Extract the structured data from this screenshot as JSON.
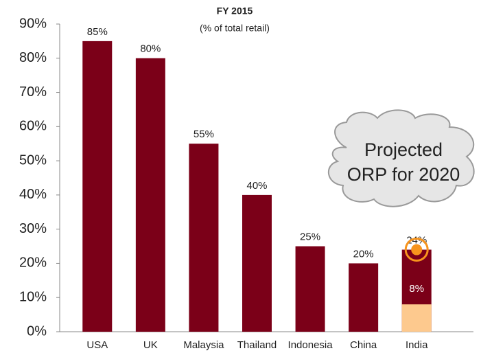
{
  "chart_data": {
    "type": "bar",
    "title": "FY 2015",
    "subtitle": "(% of total retail)",
    "categories": [
      "USA",
      "UK",
      "Malaysia",
      "Thailand",
      "Indonesia",
      "China",
      "India"
    ],
    "series": [
      {
        "color": "#7b0018",
        "values": [
          85,
          80,
          55,
          40,
          25,
          20,
          24
        ],
        "value_labels": [
          "85%",
          "80%",
          "55%",
          "40%",
          "25%",
          "20%",
          "24%"
        ]
      },
      {
        "color": "#fdc98e",
        "values": [
          null,
          null,
          null,
          null,
          null,
          null,
          8
        ],
        "value_labels": [
          null,
          null,
          null,
          null,
          null,
          null,
          "8%"
        ]
      }
    ],
    "ylim": [
      0,
      90
    ],
    "yticks": [
      {
        "value": 0,
        "label": "0%"
      },
      {
        "value": 10,
        "label": "10%"
      },
      {
        "value": 20,
        "label": "20%"
      },
      {
        "value": 30,
        "label": "30%"
      },
      {
        "value": 40,
        "label": "40%"
      },
      {
        "value": 50,
        "label": "50%"
      },
      {
        "value": 60,
        "label": "60%"
      },
      {
        "value": 70,
        "label": "70%"
      },
      {
        "value": 80,
        "label": "80%"
      },
      {
        "value": 90,
        "label": "90%"
      }
    ],
    "annotation": [
      "Projected",
      "ORP for 2020"
    ],
    "marker_color": "#f7941d"
  }
}
